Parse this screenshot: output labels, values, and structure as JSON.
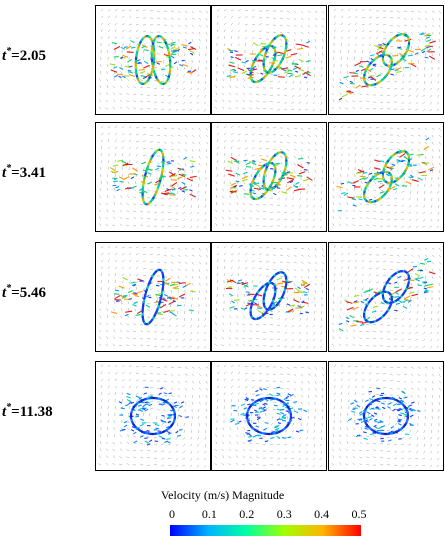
{
  "rows": [
    {
      "label_prefix": "t",
      "label_sup": "*",
      "label_value": "=2.05"
    },
    {
      "label_prefix": "t",
      "label_sup": "*",
      "label_value": "=3.41"
    },
    {
      "label_prefix": "t",
      "label_sup": "*",
      "label_value": "=5.46"
    },
    {
      "label_prefix": "t",
      "label_sup": "*",
      "label_value": "=11.38"
    }
  ],
  "colorbar": {
    "title": "Velocity (m/s) Magnitude",
    "ticks": [
      "0",
      "0.1",
      "0.2",
      "0.3",
      "0.4",
      "0.5"
    ],
    "range": [
      0,
      0.5
    ],
    "colors": [
      "#0000ff",
      "#00b4ff",
      "#00ffa0",
      "#a0ff00",
      "#ffb400",
      "#ff0000"
    ]
  }
}
